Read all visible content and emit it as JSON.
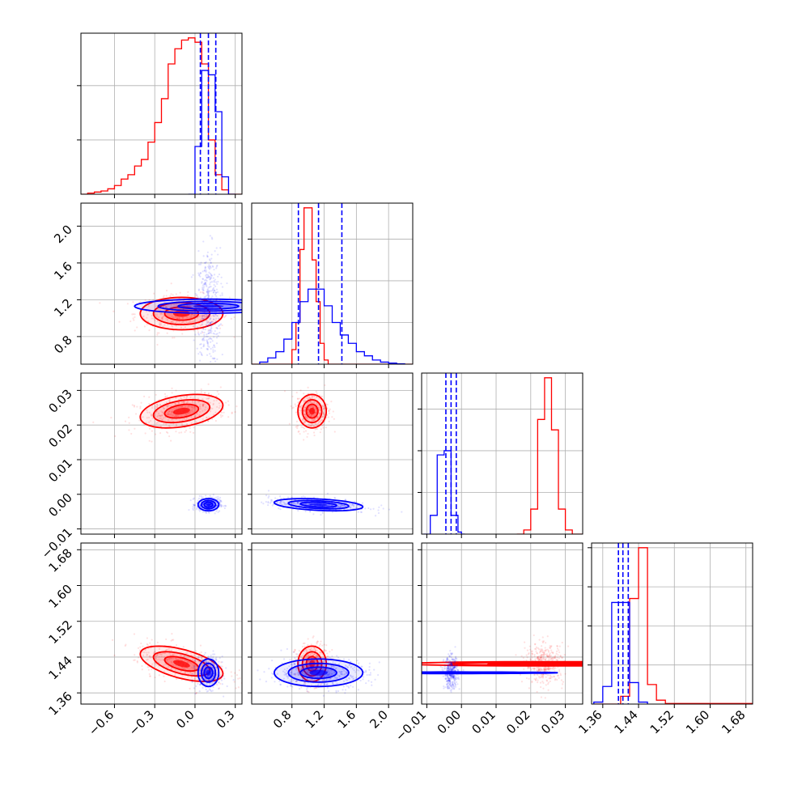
{
  "chart_data": {
    "type": "corner",
    "colors": {
      "red": "#ff0000",
      "blue": "#0000ff"
    },
    "series": [
      {
        "color": "#ff0000",
        "samples_mean": [
          -0.1,
          1.05,
          0.024,
          1.425
        ],
        "samples_sigma": [
          0.14,
          0.08,
          0.0022,
          0.018
        ],
        "correlations": {
          "0-1": 0.0,
          "0-2": 0.35,
          "0-3": -0.55,
          "1-2": 0.0,
          "1-3": 0.0,
          "2-3": 0.0
        },
        "histograms": [
          {
            "param": 0,
            "edges": [
              -0.85,
              -0.8,
              -0.75,
              -0.7,
              -0.65,
              -0.6,
              -0.55,
              -0.5,
              -0.45,
              -0.4,
              -0.35,
              -0.3,
              -0.25,
              -0.2,
              -0.15,
              -0.1,
              -0.05,
              0.0,
              0.05,
              0.1,
              0.15,
              0.2,
              0.25,
              0.3,
              0.35
            ],
            "counts": [
              0,
              0.5,
              1,
              1.5,
              2.5,
              4,
              7,
              9,
              13,
              16,
              24,
              33,
              44,
              60,
              67,
              71,
              72,
              70,
              60,
              25,
              9,
              2,
              0,
              0
            ]
          },
          {
            "param": 1,
            "edges": [
              0.3,
              0.4,
              0.5,
              0.6,
              0.7,
              0.8,
              0.85,
              0.9,
              0.95,
              1.0,
              1.05,
              1.1,
              1.15,
              1.2,
              1.25,
              1.3,
              1.4,
              1.5,
              2.3
            ],
            "counts": [
              0,
              0,
              0,
              0,
              0,
              7,
              20,
              55,
              75,
              75,
              50,
              30,
              10,
              2,
              0,
              0,
              0,
              0
            ]
          },
          {
            "param": 2,
            "edges": [
              0.016,
              0.018,
              0.02,
              0.022,
              0.024,
              0.026,
              0.028,
              0.03,
              0.032,
              0.035
            ],
            "counts": [
              0,
              2,
              12,
              55,
              75,
              50,
              12,
              2,
              0
            ]
          },
          {
            "param": 3,
            "edges": [
              1.34,
              1.36,
              1.38,
              1.4,
              1.42,
              1.44,
              1.46,
              1.48,
              1.5,
              1.7
            ],
            "counts": [
              0,
              0,
              0,
              4,
              54,
              80,
              10,
              2,
              0.3
            ]
          }
        ]
      },
      {
        "color": "#0000ff",
        "samples_mean": [
          0.1,
          1.13,
          -0.003,
          1.405
        ],
        "samples_sigma": [
          0.035,
          0.25,
          0.0008,
          0.014
        ],
        "correlations": {
          "0-1": 0.0,
          "0-2": 0.0,
          "0-3": 0.0,
          "1-2": -0.35,
          "1-3": 0.0,
          "2-3": 0.0
        },
        "histograms": [
          {
            "param": 0,
            "edges": [
              -0.05,
              0.0,
              0.05,
              0.1,
              0.15,
              0.2,
              0.25,
              0.3
            ],
            "counts": [
              0,
              22,
              57,
              55,
              38,
              8,
              0
            ]
          },
          {
            "param": 1,
            "edges": [
              0.4,
              0.5,
              0.6,
              0.7,
              0.8,
              0.9,
              1.0,
              1.1,
              1.2,
              1.3,
              1.4,
              1.5,
              1.6,
              1.7,
              1.8,
              1.9,
              2.0,
              2.1,
              2.2
            ],
            "counts": [
              1,
              3,
              6,
              12,
              20,
              30,
              36,
              36,
              28,
              20,
              14,
              10,
              6,
              4,
              2,
              1,
              0.5,
              0.2
            ]
          },
          {
            "param": 2,
            "edges": [
              -0.011,
              -0.009,
              -0.007,
              -0.005,
              -0.003,
              -0.001,
              0.0,
              0.001
            ],
            "counts": [
              0,
              9,
              38,
              40,
              9,
              1,
              0
            ]
          },
          {
            "param": 3,
            "edges": [
              1.34,
              1.36,
              1.38,
              1.4,
              1.42,
              1.44,
              1.46
            ],
            "counts": [
              1,
              9,
              52,
              52,
              11,
              1
            ]
          }
        ]
      }
    ],
    "quantile_lines": [
      {
        "param": 0,
        "color": "#0000ff",
        "values": [
          0.04,
          0.1,
          0.155
        ]
      },
      {
        "param": 1,
        "color": "#0000ff",
        "values": [
          0.88,
          1.13,
          1.42
        ]
      },
      {
        "param": 2,
        "color": "#0000ff",
        "values": [
          -0.0045,
          -0.003,
          -0.0015
        ]
      },
      {
        "param": 3,
        "color": "#0000ff",
        "values": [
          1.395,
          1.405,
          1.417
        ]
      }
    ],
    "axes": {
      "x": [
        {
          "range": [
            -0.85,
            0.35
          ],
          "ticks": [
            -0.6,
            -0.3,
            0.0,
            0.3
          ],
          "ticklabels": [
            "−0.6",
            "−0.3",
            "0.0",
            "0.3"
          ]
        },
        {
          "range": [
            0.3,
            2.3
          ],
          "ticks": [
            0.8,
            1.2,
            1.6,
            2.0
          ],
          "ticklabels": [
            "0.8",
            "1.2",
            "1.6",
            "2.0"
          ]
        },
        {
          "range": [
            -0.0115,
            0.035
          ],
          "ticks": [
            -0.01,
            0.0,
            0.01,
            0.02,
            0.03
          ],
          "ticklabels": [
            "−0.01",
            "0.00",
            "0.01",
            "0.02",
            "0.03"
          ]
        },
        {
          "range": [
            1.335,
            1.695
          ],
          "ticks": [
            1.36,
            1.44,
            1.52,
            1.6,
            1.68
          ],
          "ticklabels": [
            "1.36",
            "1.44",
            "1.52",
            "1.60",
            "1.68"
          ]
        }
      ],
      "y": [
        null,
        {
          "range": [
            0.5,
            2.25
          ],
          "ticks": [
            0.8,
            1.2,
            1.6,
            2.0
          ],
          "ticklabels": [
            "0.8",
            "1.2",
            "1.6",
            "2.0"
          ]
        },
        {
          "range": [
            -0.0115,
            0.035
          ],
          "ticks": [
            -0.01,
            0.0,
            0.01,
            0.02,
            0.03
          ],
          "ticklabels": [
            "−0.01",
            "0.00",
            "0.01",
            "0.02",
            "0.03"
          ]
        },
        {
          "range": [
            1.335,
            1.695
          ],
          "ticks": [
            1.36,
            1.44,
            1.52,
            1.6,
            1.68
          ],
          "ticklabels": [
            "1.36",
            "1.44",
            "1.52",
            "1.60",
            "1.68"
          ]
        }
      ]
    },
    "grid": true
  }
}
